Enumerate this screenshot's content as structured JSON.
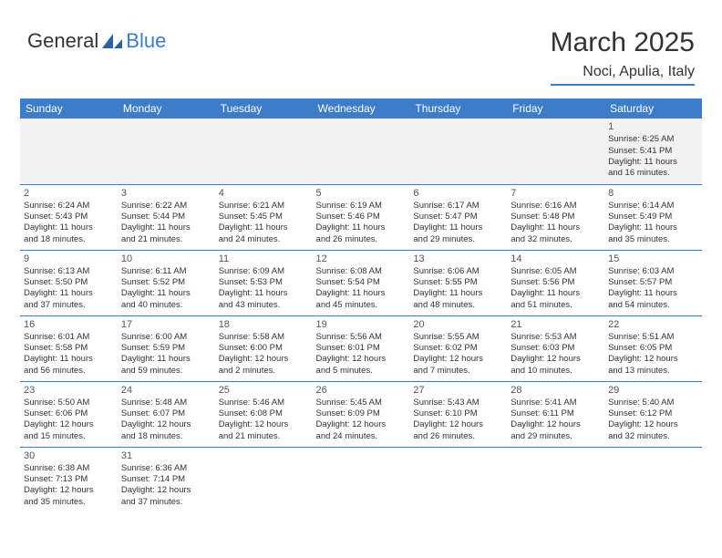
{
  "logo": {
    "text1": "General",
    "text2": "Blue",
    "icon_color": "#2e5f9e"
  },
  "header": {
    "month": "March 2025",
    "location": "Noci, Apulia, Italy"
  },
  "colors": {
    "accent": "#3d7cc9",
    "header_bg": "#3d7cc9",
    "header_fg": "#ffffff",
    "empty_bg": "#f2f2f2",
    "border": "#3d7cc9"
  },
  "weekdays": [
    "Sunday",
    "Monday",
    "Tuesday",
    "Wednesday",
    "Thursday",
    "Friday",
    "Saturday"
  ],
  "weeks": [
    [
      null,
      null,
      null,
      null,
      null,
      null,
      {
        "n": "1",
        "sr": "Sunrise: 6:25 AM",
        "ss": "Sunset: 5:41 PM",
        "d1": "Daylight: 11 hours",
        "d2": "and 16 minutes."
      }
    ],
    [
      {
        "n": "2",
        "sr": "Sunrise: 6:24 AM",
        "ss": "Sunset: 5:43 PM",
        "d1": "Daylight: 11 hours",
        "d2": "and 18 minutes."
      },
      {
        "n": "3",
        "sr": "Sunrise: 6:22 AM",
        "ss": "Sunset: 5:44 PM",
        "d1": "Daylight: 11 hours",
        "d2": "and 21 minutes."
      },
      {
        "n": "4",
        "sr": "Sunrise: 6:21 AM",
        "ss": "Sunset: 5:45 PM",
        "d1": "Daylight: 11 hours",
        "d2": "and 24 minutes."
      },
      {
        "n": "5",
        "sr": "Sunrise: 6:19 AM",
        "ss": "Sunset: 5:46 PM",
        "d1": "Daylight: 11 hours",
        "d2": "and 26 minutes."
      },
      {
        "n": "6",
        "sr": "Sunrise: 6:17 AM",
        "ss": "Sunset: 5:47 PM",
        "d1": "Daylight: 11 hours",
        "d2": "and 29 minutes."
      },
      {
        "n": "7",
        "sr": "Sunrise: 6:16 AM",
        "ss": "Sunset: 5:48 PM",
        "d1": "Daylight: 11 hours",
        "d2": "and 32 minutes."
      },
      {
        "n": "8",
        "sr": "Sunrise: 6:14 AM",
        "ss": "Sunset: 5:49 PM",
        "d1": "Daylight: 11 hours",
        "d2": "and 35 minutes."
      }
    ],
    [
      {
        "n": "9",
        "sr": "Sunrise: 6:13 AM",
        "ss": "Sunset: 5:50 PM",
        "d1": "Daylight: 11 hours",
        "d2": "and 37 minutes."
      },
      {
        "n": "10",
        "sr": "Sunrise: 6:11 AM",
        "ss": "Sunset: 5:52 PM",
        "d1": "Daylight: 11 hours",
        "d2": "and 40 minutes."
      },
      {
        "n": "11",
        "sr": "Sunrise: 6:09 AM",
        "ss": "Sunset: 5:53 PM",
        "d1": "Daylight: 11 hours",
        "d2": "and 43 minutes."
      },
      {
        "n": "12",
        "sr": "Sunrise: 6:08 AM",
        "ss": "Sunset: 5:54 PM",
        "d1": "Daylight: 11 hours",
        "d2": "and 45 minutes."
      },
      {
        "n": "13",
        "sr": "Sunrise: 6:06 AM",
        "ss": "Sunset: 5:55 PM",
        "d1": "Daylight: 11 hours",
        "d2": "and 48 minutes."
      },
      {
        "n": "14",
        "sr": "Sunrise: 6:05 AM",
        "ss": "Sunset: 5:56 PM",
        "d1": "Daylight: 11 hours",
        "d2": "and 51 minutes."
      },
      {
        "n": "15",
        "sr": "Sunrise: 6:03 AM",
        "ss": "Sunset: 5:57 PM",
        "d1": "Daylight: 11 hours",
        "d2": "and 54 minutes."
      }
    ],
    [
      {
        "n": "16",
        "sr": "Sunrise: 6:01 AM",
        "ss": "Sunset: 5:58 PM",
        "d1": "Daylight: 11 hours",
        "d2": "and 56 minutes."
      },
      {
        "n": "17",
        "sr": "Sunrise: 6:00 AM",
        "ss": "Sunset: 5:59 PM",
        "d1": "Daylight: 11 hours",
        "d2": "and 59 minutes."
      },
      {
        "n": "18",
        "sr": "Sunrise: 5:58 AM",
        "ss": "Sunset: 6:00 PM",
        "d1": "Daylight: 12 hours",
        "d2": "and 2 minutes."
      },
      {
        "n": "19",
        "sr": "Sunrise: 5:56 AM",
        "ss": "Sunset: 6:01 PM",
        "d1": "Daylight: 12 hours",
        "d2": "and 5 minutes."
      },
      {
        "n": "20",
        "sr": "Sunrise: 5:55 AM",
        "ss": "Sunset: 6:02 PM",
        "d1": "Daylight: 12 hours",
        "d2": "and 7 minutes."
      },
      {
        "n": "21",
        "sr": "Sunrise: 5:53 AM",
        "ss": "Sunset: 6:03 PM",
        "d1": "Daylight: 12 hours",
        "d2": "and 10 minutes."
      },
      {
        "n": "22",
        "sr": "Sunrise: 5:51 AM",
        "ss": "Sunset: 6:05 PM",
        "d1": "Daylight: 12 hours",
        "d2": "and 13 minutes."
      }
    ],
    [
      {
        "n": "23",
        "sr": "Sunrise: 5:50 AM",
        "ss": "Sunset: 6:06 PM",
        "d1": "Daylight: 12 hours",
        "d2": "and 15 minutes."
      },
      {
        "n": "24",
        "sr": "Sunrise: 5:48 AM",
        "ss": "Sunset: 6:07 PM",
        "d1": "Daylight: 12 hours",
        "d2": "and 18 minutes."
      },
      {
        "n": "25",
        "sr": "Sunrise: 5:46 AM",
        "ss": "Sunset: 6:08 PM",
        "d1": "Daylight: 12 hours",
        "d2": "and 21 minutes."
      },
      {
        "n": "26",
        "sr": "Sunrise: 5:45 AM",
        "ss": "Sunset: 6:09 PM",
        "d1": "Daylight: 12 hours",
        "d2": "and 24 minutes."
      },
      {
        "n": "27",
        "sr": "Sunrise: 5:43 AM",
        "ss": "Sunset: 6:10 PM",
        "d1": "Daylight: 12 hours",
        "d2": "and 26 minutes."
      },
      {
        "n": "28",
        "sr": "Sunrise: 5:41 AM",
        "ss": "Sunset: 6:11 PM",
        "d1": "Daylight: 12 hours",
        "d2": "and 29 minutes."
      },
      {
        "n": "29",
        "sr": "Sunrise: 5:40 AM",
        "ss": "Sunset: 6:12 PM",
        "d1": "Daylight: 12 hours",
        "d2": "and 32 minutes."
      }
    ],
    [
      {
        "n": "30",
        "sr": "Sunrise: 6:38 AM",
        "ss": "Sunset: 7:13 PM",
        "d1": "Daylight: 12 hours",
        "d2": "and 35 minutes."
      },
      {
        "n": "31",
        "sr": "Sunrise: 6:36 AM",
        "ss": "Sunset: 7:14 PM",
        "d1": "Daylight: 12 hours",
        "d2": "and 37 minutes."
      },
      null,
      null,
      null,
      null,
      null
    ]
  ]
}
